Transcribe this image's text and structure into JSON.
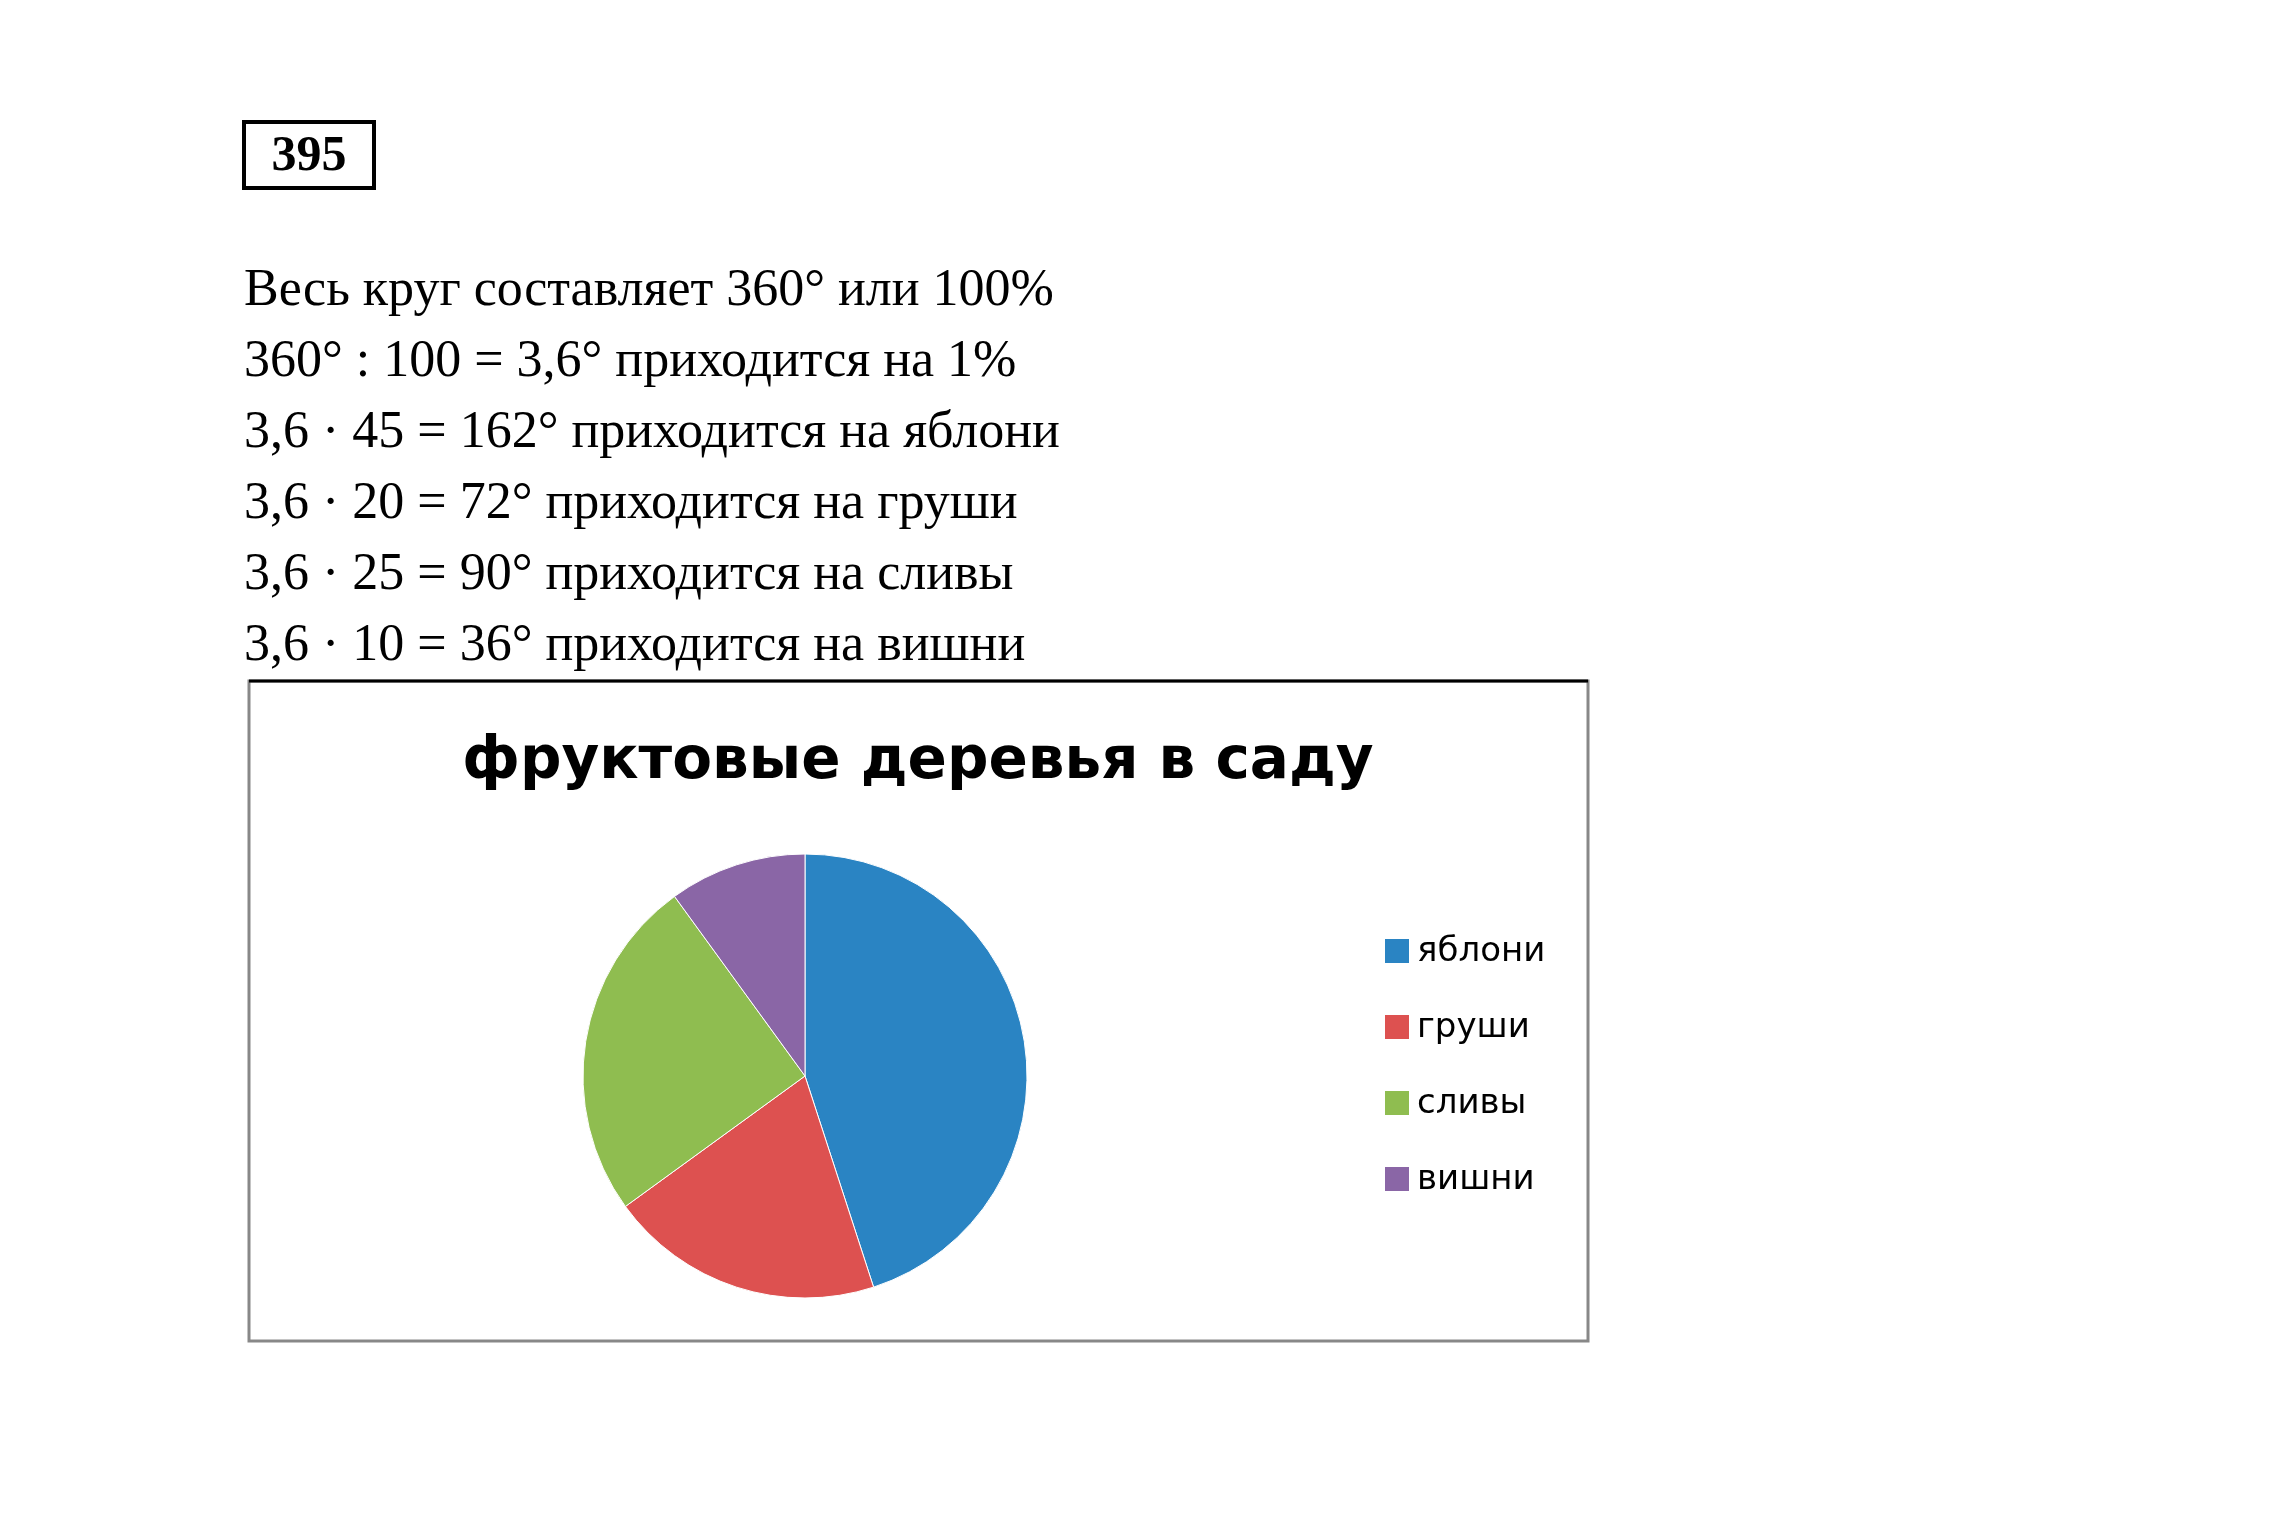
{
  "chart_data": {
    "type": "pie",
    "title": "фруктовые деревья в саду",
    "categories": [
      "яблони",
      "груши",
      "сливы",
      "вишни"
    ],
    "values": [
      45,
      20,
      25,
      10
    ],
    "colors": [
      "#2a84c3",
      "#dd5150",
      "#8fbd50",
      "#8a66a6"
    ],
    "legend": "right",
    "annotations": [
      "395",
      "Весь круг составляет 360° или 100%",
      "360° : 100 = 3,6° приходится на 1%",
      "3,6 · 45 = 162° приходится на яблони",
      "3,6 · 20 = 72° приходится на груши",
      "3,6 · 25 = 90° приходится на сливы",
      "3,6 · 10 = 36° приходится на вишни"
    ]
  }
}
